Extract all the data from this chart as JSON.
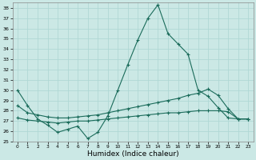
{
  "xlabel": "Humidex (Indice chaleur)",
  "ylabel": "",
  "background_color": "#cbe8e5",
  "grid_color": "#b0d8d5",
  "line_color": "#1a6b5a",
  "xlim": [
    -0.5,
    23.5
  ],
  "ylim": [
    25,
    38.5
  ],
  "yticks": [
    25,
    26,
    27,
    28,
    29,
    30,
    31,
    32,
    33,
    34,
    35,
    36,
    37,
    38
  ],
  "xticks": [
    0,
    1,
    2,
    3,
    4,
    5,
    6,
    7,
    8,
    9,
    10,
    11,
    12,
    13,
    14,
    15,
    16,
    17,
    18,
    19,
    20,
    21,
    22,
    23
  ],
  "x": [
    0,
    1,
    2,
    3,
    4,
    5,
    6,
    7,
    8,
    9,
    10,
    11,
    12,
    13,
    14,
    15,
    16,
    17,
    18,
    19,
    20,
    21,
    22,
    23
  ],
  "line1": [
    30.0,
    28.5,
    27.2,
    26.6,
    25.9,
    26.2,
    26.5,
    25.3,
    25.9,
    27.5,
    30.0,
    32.5,
    34.9,
    37.0,
    38.3,
    35.5,
    34.5,
    33.5,
    30.0,
    29.4,
    28.3,
    27.3,
    27.2,
    27.2
  ],
  "line2": [
    28.5,
    27.8,
    27.6,
    27.4,
    27.3,
    27.3,
    27.4,
    27.5,
    27.6,
    27.8,
    28.0,
    28.2,
    28.4,
    28.6,
    28.8,
    29.0,
    29.2,
    29.5,
    29.7,
    30.1,
    29.5,
    28.2,
    27.2,
    27.2
  ],
  "line3": [
    27.3,
    27.1,
    27.0,
    26.9,
    26.8,
    26.9,
    27.0,
    27.0,
    27.1,
    27.2,
    27.3,
    27.4,
    27.5,
    27.6,
    27.7,
    27.8,
    27.8,
    27.9,
    28.0,
    28.0,
    28.0,
    27.9,
    27.2,
    27.2
  ]
}
